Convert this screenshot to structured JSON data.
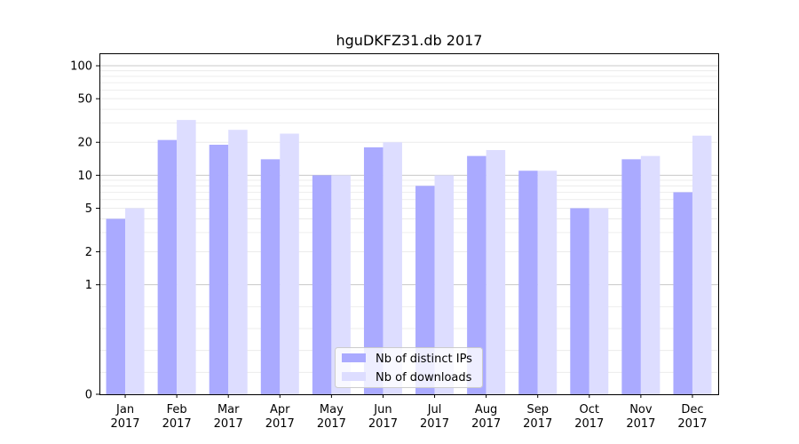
{
  "chart_data": {
    "type": "bar",
    "title": "hguDKFZ31.db 2017",
    "xlabel": "",
    "ylabel": "",
    "yscale": "symlog",
    "ylim": [
      0,
      130
    ],
    "y_ticks": [
      "0",
      "1",
      "2",
      "5",
      "10",
      "20",
      "50",
      "100"
    ],
    "categories": [
      [
        "Jan",
        "2017"
      ],
      [
        "Feb",
        "2017"
      ],
      [
        "Mar",
        "2017"
      ],
      [
        "Apr",
        "2017"
      ],
      [
        "May",
        "2017"
      ],
      [
        "Jun",
        "2017"
      ],
      [
        "Jul",
        "2017"
      ],
      [
        "Aug",
        "2017"
      ],
      [
        "Sep",
        "2017"
      ],
      [
        "Oct",
        "2017"
      ],
      [
        "Nov",
        "2017"
      ],
      [
        "Dec",
        "2017"
      ]
    ],
    "series": [
      {
        "name": "Nb of distinct IPs",
        "color": "#aaaaff",
        "values": [
          4,
          21,
          19,
          14,
          10,
          18,
          8,
          15,
          11,
          5,
          14,
          7
        ]
      },
      {
        "name": "Nb of downloads",
        "color": "#ddddff",
        "values": [
          5,
          32,
          26,
          24,
          10,
          20,
          10,
          17,
          11,
          5,
          15,
          23
        ]
      }
    ],
    "grid": true,
    "legend_position": "bottom-center"
  }
}
